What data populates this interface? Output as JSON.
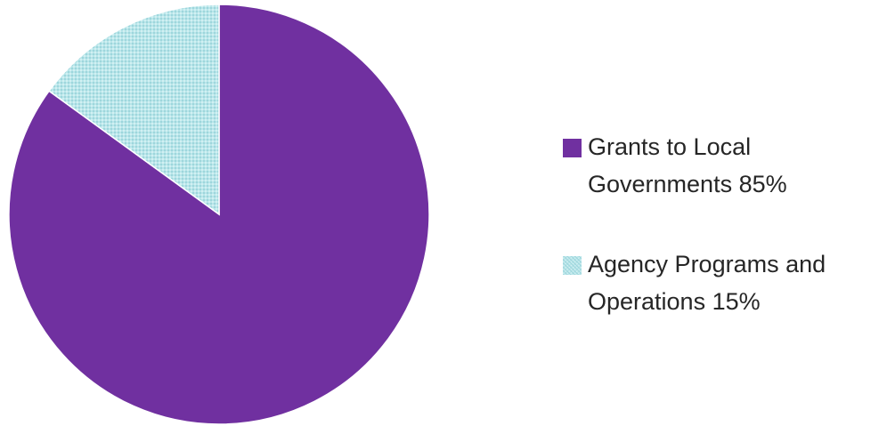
{
  "chart_data": {
    "type": "pie",
    "series": [
      {
        "name": "Grants to Local Governments",
        "value": 85,
        "legend_lines": [
          "Grants to Local",
          "Governments  85%"
        ],
        "color": "#7030a0",
        "pattern": false
      },
      {
        "name": "Agency Programs and Operations",
        "value": 15,
        "legend_lines": [
          "Agency Programs and",
          "Operations 15%"
        ],
        "color": "#b7e4e9",
        "pattern": true
      }
    ],
    "start_angle_deg": 0,
    "direction": "clockwise",
    "legend_position": "right",
    "title": ""
  }
}
